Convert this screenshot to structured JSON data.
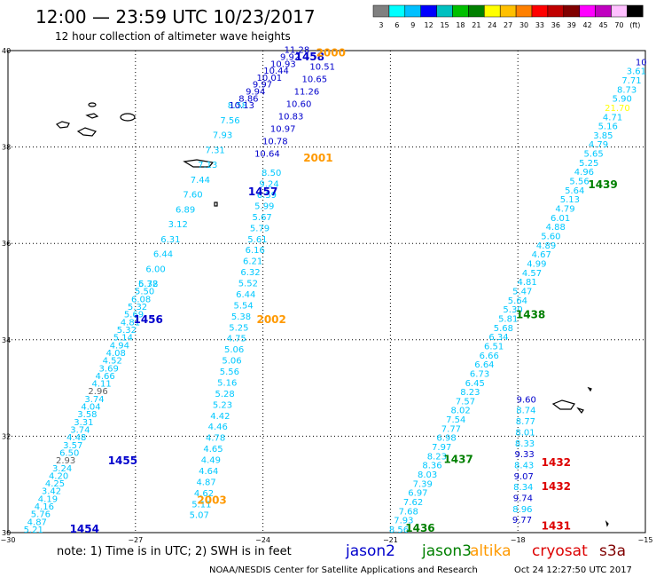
{
  "header": {
    "title": "12:00 — 23:59 UTC 10/23/2017",
    "subtitle": "12 hour collection of altimeter wave heights"
  },
  "colorbar": {
    "labels": [
      "3",
      "6",
      "9",
      "12",
      "15",
      "18",
      "21",
      "24",
      "27",
      "30",
      "33",
      "36",
      "39",
      "42",
      "45",
      "70",
      "(ft)"
    ],
    "colors": [
      "#808080",
      "#00ffff",
      "#00c0ff",
      "#0000ff",
      "#00c0c0",
      "#00c000",
      "#008000",
      "#ffff00",
      "#ffc000",
      "#ff8000",
      "#ff0000",
      "#c00000",
      "#800000",
      "#ff00ff",
      "#c000c0",
      "#ffc0ff",
      "#000000"
    ]
  },
  "footer": {
    "note": "note:  1) Time is in UTC;  2) SWH is in feet",
    "satellites": [
      {
        "name": "jason2",
        "color": "#0000cc"
      },
      {
        "name": "jason3",
        "color": "#008000"
      },
      {
        "name": "altika",
        "color": "#ff9900"
      },
      {
        "name": "cryosat",
        "color": "#dd0000"
      },
      {
        "name": "s3a",
        "color": "#800000"
      }
    ],
    "credit": "NOAA/NESDIS Center for Satellite Applications and Research",
    "timestamp": "Oct 24 12:27:50 UTC 2017"
  },
  "chart_data": {
    "type": "scatter",
    "xlim": [
      -30,
      -15
    ],
    "ylim": [
      30,
      40
    ],
    "x_ticks": [
      -30,
      -27,
      -24,
      -21,
      -18,
      -15
    ],
    "y_ticks": [
      40,
      38,
      36,
      34,
      32,
      30
    ],
    "x_tick_labels": [
      "−30",
      "−27",
      "−24",
      "−21",
      "−18",
      "−15"
    ],
    "y_tick_labels": [
      "40",
      "38",
      "36",
      "34",
      "32",
      "30"
    ],
    "grid": true,
    "value_colors": {
      "cyan": "#00c8ff",
      "blue": "#0000cc",
      "gray": "#606060",
      "yellow": "#ffff00"
    },
    "tracks": [
      {
        "id": "jason2-west",
        "start": [
          -29.4,
          30.0
        ],
        "end": [
          -26.7,
          35.1
        ],
        "color": "cyan",
        "values": [
          "5.21",
          "4.87",
          "5.76",
          "4.16",
          "4.19",
          "3.42",
          "4.25",
          "4.20",
          "3.24",
          "2.93",
          "6.50",
          "3.57",
          "4.48",
          "3.74",
          "3.31",
          "3.58",
          "4.04",
          "3.74",
          "2.96",
          "4.11",
          "4.66",
          "3.69",
          "4.52",
          "4.08",
          "4.94",
          "5.14",
          "5.32",
          "4.81",
          "5.69",
          "5.32",
          "6.08",
          "5.50",
          "5.78"
        ],
        "gray": [
          "2.93",
          "2.96"
        ]
      },
      {
        "id": "jason2-north",
        "start": [
          -26.7,
          35.1
        ],
        "end": [
          -24.6,
          38.8
        ],
        "color": "cyan",
        "values": [
          "6.32",
          "6.00",
          "6.44",
          "6.31",
          "3.12",
          "6.89",
          "7.60",
          "7.44",
          "7.13",
          "7.31",
          "7.93",
          "7.56",
          "8.58"
        ]
      },
      {
        "id": "jason2-top",
        "start": [
          -24.5,
          38.8
        ],
        "end": [
          -23.2,
          39.95
        ],
        "color": "blue",
        "values": [
          "10.13",
          "8.86",
          "9.94",
          "9.97",
          "10.01",
          "10.44",
          "10.93",
          "9.92",
          "11.28"
        ]
      },
      {
        "id": "jason2-top-b",
        "start": [
          -23.9,
          37.8
        ],
        "end": [
          -22.6,
          39.6
        ],
        "color": "blue",
        "values": [
          "10.64",
          "10.78",
          "10.97",
          "10.83",
          "10.60",
          "11.26",
          "10.65",
          "10.51"
        ]
      },
      {
        "id": "altika-track",
        "start": [
          -25.5,
          30.3
        ],
        "end": [
          -23.8,
          37.4
        ],
        "color": "cyan",
        "values": [
          "5.07",
          "5.11",
          "4.62",
          "4.87",
          "4.64",
          "4.49",
          "4.65",
          "4.78",
          "4.46",
          "4.42",
          "5.23",
          "5.28",
          "5.16",
          "5.56",
          "5.06",
          "5.06",
          "4.75",
          "5.25",
          "5.38",
          "5.54",
          "6.44",
          "5.52",
          "6.32",
          "6.21",
          "6.16",
          "5.61",
          "5.79",
          "5.67",
          "5.99",
          "6.59",
          "9.24",
          "8.50"
        ]
      },
      {
        "id": "jason3-track",
        "start": [
          -20.8,
          30.0
        ],
        "end": [
          -15.1,
          39.7
        ],
        "color": "cyan",
        "values": [
          "8.56",
          "7.93",
          "7.68",
          "7.62",
          "6.97",
          "7.39",
          "8.03",
          "8.36",
          "8.23",
          "7.97",
          "6.98",
          "7.77",
          "7.54",
          "8.02",
          "7.57",
          "8.23",
          "6.45",
          "6.73",
          "6.64",
          "6.66",
          "6.51",
          "6.34",
          "5.68",
          "5.81",
          "5.30",
          "5.64",
          "5.47",
          "4.81",
          "4.57",
          "4.99",
          "4.67",
          "4.89",
          "5.60",
          "4.88",
          "6.01",
          "4.79",
          "5.13",
          "5.64",
          "5.56",
          "4.96",
          "5.25",
          "5.65",
          "4.79",
          "3.85",
          "5.16",
          "4.71",
          "21.70",
          "5.90",
          "8.73",
          "7.71",
          "3.61",
          "10"
        ],
        "yellow": [
          "21.70"
        ],
        "blue": [
          "10"
        ]
      },
      {
        "id": "cryosat-track",
        "start": [
          -17.9,
          30.2
        ],
        "end": [
          -17.8,
          32.7
        ],
        "color": "cyan",
        "values": [
          "9.77",
          "8.96",
          "9.74",
          "8.34",
          "9.07",
          "8.43",
          "9.33",
          "8.33",
          "8.01",
          "8.77",
          "8.74",
          "9.60"
        ],
        "blue": [
          "9.77",
          "9.74",
          "9.07",
          "9.33",
          "9.60"
        ]
      }
    ],
    "pass_labels": [
      {
        "text": "1458",
        "x": -22.9,
        "y": 39.8,
        "color": "#0000cc"
      },
      {
        "text": "2000",
        "x": -22.4,
        "y": 39.88,
        "color": "#ff9900"
      },
      {
        "text": "2001",
        "x": -22.7,
        "y": 37.7,
        "color": "#ff9900"
      },
      {
        "text": "1457",
        "x": -24.0,
        "y": 37.0,
        "color": "#0000cc"
      },
      {
        "text": "1456",
        "x": -26.7,
        "y": 34.35,
        "color": "#0000cc"
      },
      {
        "text": "2002",
        "x": -23.8,
        "y": 34.35,
        "color": "#ff9900"
      },
      {
        "text": "1455",
        "x": -27.3,
        "y": 31.42,
        "color": "#0000cc"
      },
      {
        "text": "2003",
        "x": -25.2,
        "y": 30.6,
        "color": "#ff9900"
      },
      {
        "text": "1454",
        "x": -28.2,
        "y": 30.0,
        "color": "#0000cc"
      },
      {
        "text": "1439",
        "x": -16.0,
        "y": 37.15,
        "color": "#008000"
      },
      {
        "text": "1438",
        "x": -17.7,
        "y": 34.45,
        "color": "#008000"
      },
      {
        "text": "1437",
        "x": -19.4,
        "y": 31.45,
        "color": "#008000"
      },
      {
        "text": "1436",
        "x": -20.3,
        "y": 30.02,
        "color": "#008000"
      },
      {
        "text": "1432",
        "x": -17.1,
        "y": 31.38,
        "color": "#dd0000"
      },
      {
        "text": "1432",
        "x": -17.1,
        "y": 30.88,
        "color": "#dd0000"
      },
      {
        "text": "1431",
        "x": -17.1,
        "y": 30.06,
        "color": "#dd0000"
      }
    ]
  }
}
